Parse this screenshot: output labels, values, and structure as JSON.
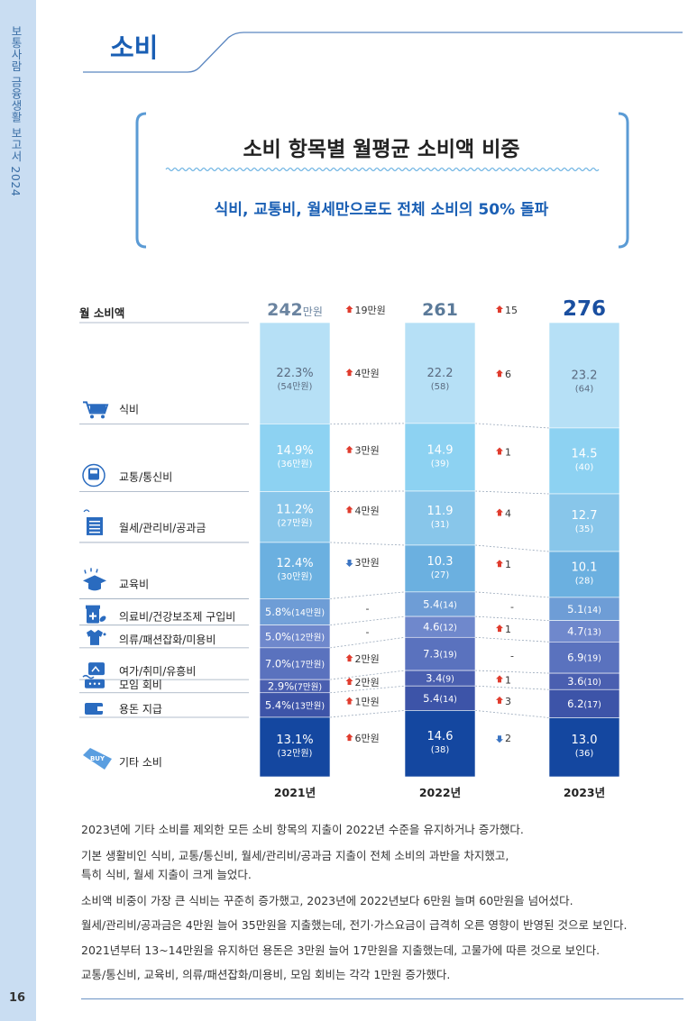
{
  "sidebar": {
    "report_title": "보통사람 금융생활 보고서 2024",
    "page_number": "16"
  },
  "section": {
    "title": "소비"
  },
  "chart_data": {
    "type": "stacked-bar",
    "title": "소비 항목별 월평균 소비액 비중",
    "subtitle": "식비, 교통비, 월세만으로도 전체 소비의 50% 돌파",
    "total_label": "월 소비액",
    "years": [
      "2021년",
      "2022년",
      "2023년"
    ],
    "totals": [
      {
        "value": "242",
        "unit": "만원",
        "amount": 242
      },
      {
        "value": "261",
        "unit": "",
        "amount": 261
      },
      {
        "value": "276",
        "unit": "",
        "amount": 276
      }
    ],
    "total_changes": [
      {
        "dir": "up",
        "text": "19만원"
      },
      {
        "dir": "up",
        "text": "15"
      }
    ],
    "categories": [
      {
        "name": "식비",
        "icon": "shopping-cart-icon",
        "share": [
          22.3,
          22.2,
          23.2
        ],
        "labels": [
          {
            "pct": "22.3%",
            "amt": "(54만원)"
          },
          {
            "pct": "22.2",
            "amt": "(58)"
          },
          {
            "pct": "23.2",
            "amt": "(64)"
          }
        ],
        "changes": [
          {
            "dir": "up",
            "text": "4만원"
          },
          {
            "dir": "up",
            "text": "6"
          }
        ]
      },
      {
        "name": "교통/통신비",
        "icon": "train-icon",
        "share": [
          14.9,
          14.9,
          14.5
        ],
        "labels": [
          {
            "pct": "14.9%",
            "amt": "(36만원)"
          },
          {
            "pct": "14.9",
            "amt": "(39)"
          },
          {
            "pct": "14.5",
            "amt": "(40)"
          }
        ],
        "changes": [
          {
            "dir": "up",
            "text": "3만원"
          },
          {
            "dir": "up",
            "text": "1"
          }
        ]
      },
      {
        "name": "월세/관리비/공과금",
        "icon": "bill-icon",
        "share": [
          11.2,
          11.9,
          12.7
        ],
        "labels": [
          {
            "pct": "11.2%",
            "amt": "(27만원)"
          },
          {
            "pct": "11.9",
            "amt": "(31)"
          },
          {
            "pct": "12.7",
            "amt": "(35)"
          }
        ],
        "changes": [
          {
            "dir": "up",
            "text": "4만원"
          },
          {
            "dir": "up",
            "text": "4"
          }
        ]
      },
      {
        "name": "교육비",
        "icon": "graduation-cap-icon",
        "share": [
          12.4,
          10.3,
          10.1
        ],
        "labels": [
          {
            "pct": "12.4%",
            "amt": "(30만원)"
          },
          {
            "pct": "10.3",
            "amt": "(27)"
          },
          {
            "pct": "10.1",
            "amt": "(28)"
          }
        ],
        "changes": [
          {
            "dir": "down",
            "text": "3만원"
          },
          {
            "dir": "up",
            "text": "1"
          }
        ]
      },
      {
        "name": "의료비/건강보조제 구입비",
        "icon": "medicine-icon",
        "share": [
          5.8,
          5.4,
          5.1
        ],
        "labels": [
          {
            "pct": "5.8%",
            "amt": "(14만원)",
            "inline": true
          },
          {
            "pct": "5.4",
            "amt": "(14)",
            "inline": true
          },
          {
            "pct": "5.1",
            "amt": "(14)",
            "inline": true
          }
        ],
        "changes": [
          {
            "dir": "none",
            "text": "-"
          },
          {
            "dir": "none",
            "text": "-"
          }
        ]
      },
      {
        "name": "의류/패션잡화/미용비",
        "icon": "fashion-icon",
        "share": [
          5.0,
          4.6,
          4.7
        ],
        "labels": [
          {
            "pct": "5.0%",
            "amt": "(12만원)",
            "inline": true
          },
          {
            "pct": "4.6",
            "amt": "(12)",
            "inline": true
          },
          {
            "pct": "4.7",
            "amt": "(13)",
            "inline": true
          }
        ],
        "changes": [
          {
            "dir": "none",
            "text": "-"
          },
          {
            "dir": "up",
            "text": "1"
          }
        ]
      },
      {
        "name": "여가/취미/유흥비",
        "icon": "leisure-icon",
        "share": [
          7.0,
          7.3,
          6.9
        ],
        "labels": [
          {
            "pct": "7.0%",
            "amt": "(17만원)",
            "inline": true
          },
          {
            "pct": "7.3",
            "amt": "(19)",
            "inline": true
          },
          {
            "pct": "6.9",
            "amt": "(19)",
            "inline": true
          }
        ],
        "changes": [
          {
            "dir": "up",
            "text": "2만원"
          },
          {
            "dir": "none",
            "text": "-"
          }
        ]
      },
      {
        "name": "모임 회비",
        "icon": "chat-icon",
        "share": [
          2.9,
          3.4,
          3.6
        ],
        "labels": [
          {
            "pct": "2.9%",
            "amt": "(7만원)",
            "inline": true
          },
          {
            "pct": "3.4",
            "amt": "(9)",
            "inline": true
          },
          {
            "pct": "3.6",
            "amt": "(10)",
            "inline": true
          }
        ],
        "changes": [
          {
            "dir": "up",
            "text": "2만원"
          },
          {
            "dir": "up",
            "text": "1"
          }
        ]
      },
      {
        "name": "용돈 지급",
        "icon": "wallet-icon",
        "share": [
          5.4,
          5.4,
          6.2
        ],
        "labels": [
          {
            "pct": "5.4%",
            "amt": "(13만원)",
            "inline": true
          },
          {
            "pct": "5.4",
            "amt": "(14)",
            "inline": true
          },
          {
            "pct": "6.2",
            "amt": "(17)",
            "inline": true
          }
        ],
        "changes": [
          {
            "dir": "up",
            "text": "1만원"
          },
          {
            "dir": "up",
            "text": "3"
          }
        ]
      },
      {
        "name": "기타 소비",
        "icon": "tag-icon",
        "icon_text": "BUY",
        "share": [
          13.1,
          14.6,
          13.0
        ],
        "labels": [
          {
            "pct": "13.1%",
            "amt": "(32만원)"
          },
          {
            "pct": "14.6",
            "amt": "(38)"
          },
          {
            "pct": "13.0",
            "amt": "(36)"
          }
        ],
        "changes": [
          {
            "dir": "up",
            "text": "6만원"
          },
          {
            "dir": "down",
            "text": "2"
          }
        ]
      }
    ],
    "colors": {
      "segments": [
        "#b6e0f6",
        "#8dd2f2",
        "#88c6ea",
        "#6bb0e0",
        "#6e9dd6",
        "#6f88cc",
        "#5a72be",
        "#4a5fb0",
        "#3d54a8",
        "#1447a0"
      ],
      "title": "#1a5fb4",
      "up_arrow": "#e03c2e",
      "down_arrow": "#3b74c2",
      "total_2021": "#6b84a0",
      "total_2022": "#5b7a99",
      "total_2023": "#1a4fa0"
    }
  },
  "paragraphs": [
    "2023년에 기타 소비를 제외한 모든 소비 항목의 지출이 2022년 수준을 유지하거나 증가했다.",
    "기본 생활비인 식비, 교통/통신비, 월세/관리비/공과금 지출이 전체 소비의 과반을 차지했고,",
    "특히 식비, 월세 지출이 크게 늘었다.",
    "소비액 비중이 가장 큰 식비는 꾸준히 증가했고, 2023년에 2022년보다 6만원 늘며 60만원을 넘어섰다.",
    "월세/관리비/공과금은 4만원 늘어 35만원을 지출했는데, 전기·가스요금이 급격히 오른 영향이 반영된 것으로 보인다.",
    "2021년부터 13~14만원을 유지하던 용돈은 3만원 늘어 17만원을 지출했는데, 고물가에 따른 것으로 보인다.",
    "교통/통신비, 교육비, 의류/패션잡화/미용비, 모임 회비는 각각 1만원 증가했다."
  ]
}
